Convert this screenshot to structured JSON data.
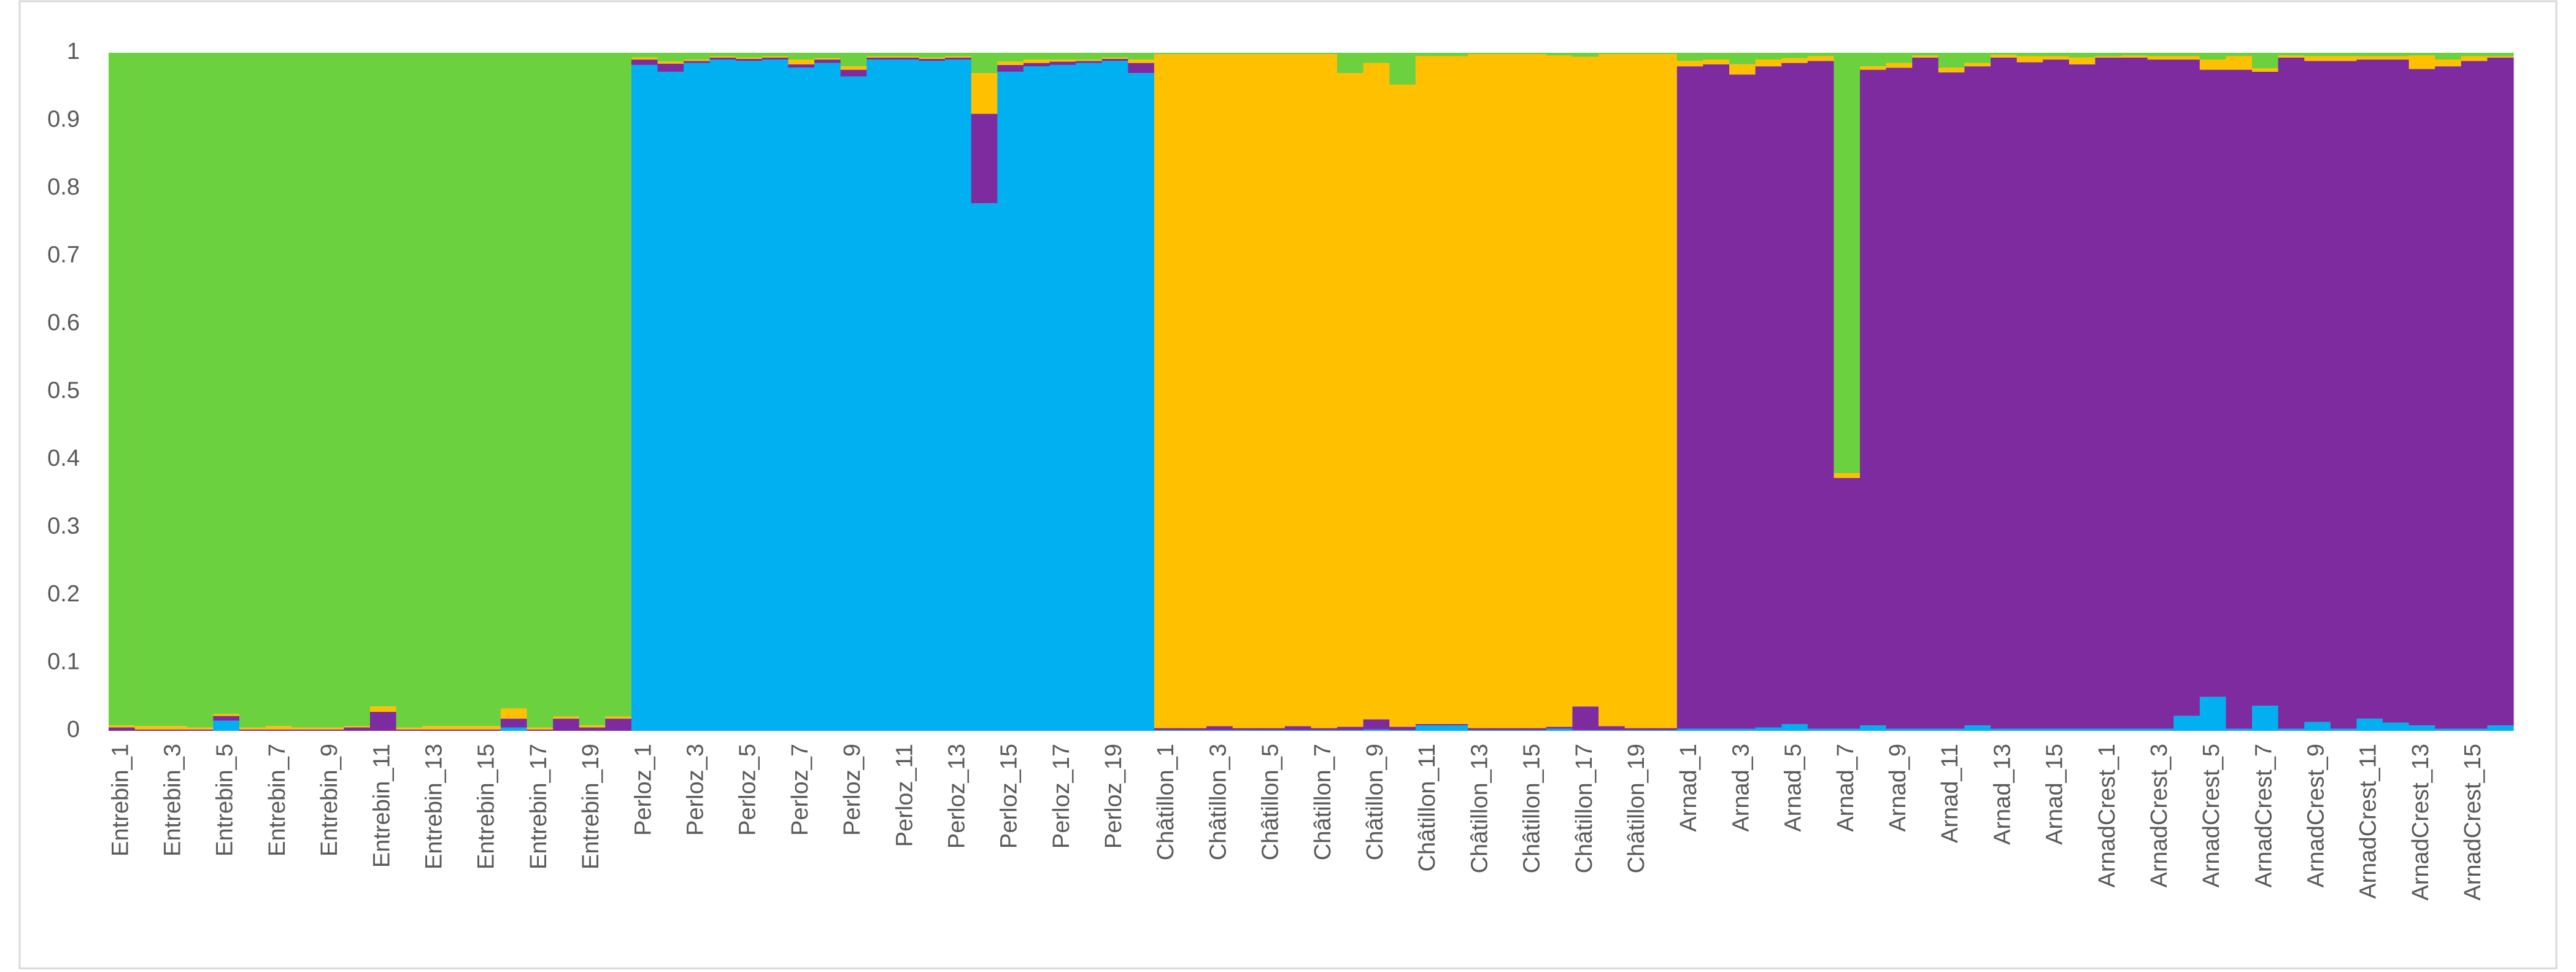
{
  "chart_data": {
    "type": "stacked_bar",
    "categories": [
      "Entrebin_1",
      null,
      "Entrebin_3",
      null,
      "Entrebin_5",
      null,
      "Entrebin_7",
      null,
      "Entrebin_9",
      null,
      "Entrebin_11",
      null,
      "Entrebin_13",
      null,
      "Entrebin_15",
      null,
      "Entrebin_17",
      null,
      "Entrebin_19",
      null,
      "Perloz_1",
      null,
      "Perloz_3",
      null,
      "Perloz_5",
      null,
      "Perloz_7",
      null,
      "Perloz_9",
      null,
      "Perloz_11",
      null,
      "Perloz_13",
      null,
      "Perloz_15",
      null,
      "Perloz_17",
      null,
      "Perloz_19",
      null,
      "Châtillon_1",
      null,
      "Châtillon_3",
      null,
      "Châtillon_5",
      null,
      "Châtillon_7",
      null,
      "Châtillon_9",
      null,
      "Châtillon_11",
      null,
      "Châtillon_13",
      null,
      "Châtillon_15",
      null,
      "Châtillon_17",
      null,
      "Châtillon_19",
      null,
      "Arnad_1",
      null,
      "Arnad_3",
      null,
      "Arnad_5",
      null,
      "Arnad_7",
      null,
      "Arnad_9",
      null,
      "Arnad_11",
      null,
      "Arnad_13",
      null,
      "Arnad_15",
      null,
      "ArnadCrest_1",
      null,
      "ArnadCrest_3",
      null,
      "ArnadCrest_5",
      null,
      "ArnadCrest_7",
      null,
      "ArnadCrest_9",
      null,
      "ArnadCrest_11",
      null,
      "ArnadCrest_13",
      null,
      "ArnadCrest_15",
      null
    ],
    "series": [
      {
        "color": "#00b0f0",
        "values": [
          0,
          0,
          0,
          0,
          0.015,
          0,
          0,
          0,
          0,
          0,
          0,
          0,
          0,
          0,
          0,
          0.005,
          0,
          0,
          0,
          0,
          0.982,
          0.972,
          0.985,
          0.99,
          0.988,
          0.99,
          0.978,
          0.985,
          0.965,
          0.99,
          0.99,
          0.988,
          0.99,
          0.778,
          0.972,
          0.98,
          0.982,
          0.985,
          0.988,
          0.97,
          0.001,
          0.001,
          0.001,
          0.001,
          0.001,
          0.001,
          0.001,
          0.001,
          0.002,
          0.001,
          0.008,
          0.008,
          0.001,
          0.001,
          0.001,
          0.003,
          0.001,
          0.001,
          0.001,
          0.001,
          0.003,
          0.003,
          0.003,
          0.005,
          0.01,
          0.003,
          0.003,
          0.008,
          0.003,
          0.003,
          0.003,
          0.008,
          0.003,
          0.003,
          0.003,
          0.003,
          0.003,
          0.003,
          0.003,
          0.022,
          0.05,
          0.003,
          0.037,
          0.003,
          0.013,
          0.003,
          0.018,
          0.012,
          0.008,
          0.003,
          0.003,
          0.008
        ]
      },
      {
        "color": "#7f2ba0",
        "values": [
          0.005,
          0.002,
          0.002,
          0.002,
          0.007,
          0.002,
          0.002,
          0.002,
          0.002,
          0.005,
          0.028,
          0.002,
          0.002,
          0.002,
          0.002,
          0.013,
          0.002,
          0.018,
          0.005,
          0.018,
          0.008,
          0.012,
          0.003,
          0.003,
          0.003,
          0.003,
          0.005,
          0.005,
          0.01,
          0.003,
          0.003,
          0.003,
          0.003,
          0.132,
          0.01,
          0.005,
          0.005,
          0.003,
          0.003,
          0.015,
          0.003,
          0.003,
          0.006,
          0.003,
          0.003,
          0.006,
          0.003,
          0.005,
          0.015,
          0.005,
          0.002,
          0.002,
          0.003,
          0.003,
          0.003,
          0.003,
          0.035,
          0.006,
          0.003,
          0.003,
          0.977,
          0.98,
          0.965,
          0.975,
          0.975,
          0.985,
          0.37,
          0.967,
          0.975,
          0.99,
          0.968,
          0.972,
          0.99,
          0.983,
          0.987,
          0.98,
          0.99,
          0.99,
          0.987,
          0.968,
          0.925,
          0.972,
          0.935,
          0.99,
          0.975,
          0.985,
          0.972,
          0.978,
          0.968,
          0.977,
          0.985,
          0.985
        ]
      },
      {
        "color": "#ffc000",
        "values": [
          0.003,
          0.005,
          0.005,
          0.003,
          0.003,
          0.003,
          0.005,
          0.003,
          0.003,
          0.002,
          0.008,
          0.003,
          0.005,
          0.005,
          0.005,
          0.015,
          0.003,
          0.003,
          0.003,
          0.003,
          0.003,
          0.003,
          0.002,
          0.002,
          0.002,
          0.002,
          0.007,
          0.002,
          0.005,
          0.002,
          0.002,
          0.002,
          0.002,
          0.06,
          0.005,
          0.005,
          0.003,
          0.002,
          0.002,
          0.005,
          0.994,
          0.994,
          0.991,
          0.994,
          0.994,
          0.991,
          0.994,
          0.964,
          0.968,
          0.947,
          0.985,
          0.985,
          0.994,
          0.994,
          0.994,
          0.99,
          0.958,
          0.991,
          0.994,
          0.994,
          0.008,
          0.007,
          0.015,
          0.01,
          0.007,
          0.007,
          0.007,
          0.005,
          0.007,
          0.003,
          0.007,
          0.005,
          0.004,
          0.009,
          0.005,
          0.01,
          0.002,
          0.003,
          0.005,
          0.005,
          0.015,
          0.02,
          0.005,
          0.003,
          0.007,
          0.007,
          0.005,
          0.005,
          0.02,
          0.01,
          0.007,
          0.002
        ]
      },
      {
        "color": "#6cd13f",
        "values": [
          0.992,
          0.993,
          0.993,
          0.995,
          0.975,
          0.995,
          0.993,
          0.995,
          0.995,
          0.993,
          0.964,
          0.995,
          0.993,
          0.993,
          0.993,
          0.967,
          0.995,
          0.979,
          0.992,
          0.979,
          0.007,
          0.013,
          0.01,
          0.005,
          0.007,
          0.005,
          0.01,
          0.008,
          0.02,
          0.005,
          0.005,
          0.007,
          0.005,
          0.03,
          0.013,
          0.01,
          0.01,
          0.01,
          0.007,
          0.01,
          0.002,
          0.002,
          0.002,
          0.002,
          0.002,
          0.002,
          0.002,
          0.03,
          0.015,
          0.047,
          0.005,
          0.005,
          0.002,
          0.002,
          0.002,
          0.004,
          0.006,
          0.002,
          0.002,
          0.002,
          0.012,
          0.01,
          0.017,
          0.01,
          0.008,
          0.005,
          0.62,
          0.02,
          0.015,
          0.004,
          0.022,
          0.015,
          0.003,
          0.005,
          0.005,
          0.007,
          0.005,
          0.004,
          0.005,
          0.005,
          0.01,
          0.005,
          0.023,
          0.004,
          0.005,
          0.005,
          0.005,
          0.005,
          0.004,
          0.01,
          0.005,
          0.005
        ]
      }
    ],
    "ylim": [
      0,
      1
    ],
    "yticks": [
      0,
      0.1,
      0.2,
      0.3,
      0.4,
      0.5,
      0.6,
      0.7,
      0.8,
      0.9,
      1
    ],
    "grid": false
  }
}
